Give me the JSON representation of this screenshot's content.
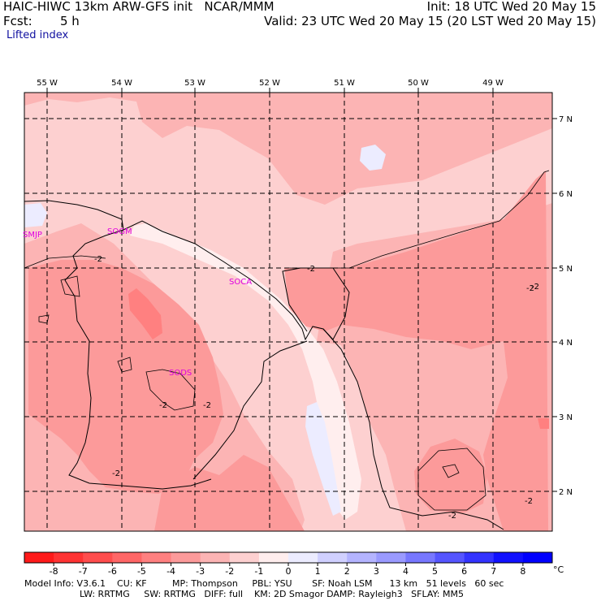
{
  "header": {
    "title_left": "HAIC-HIWC 13km ARW-GFS init   NCAR/MMM",
    "fcst_label": "Fcst:",
    "fcst_value": "5 h",
    "init_text": "Init: 18 UTC Wed 20 May 15",
    "valid_text": "Valid: 23 UTC Wed 20 May 15 (20 LST Wed 20 May 15)",
    "field_name": "Lifted index"
  },
  "map": {
    "lon_labels": [
      "55 W",
      "54 W",
      "53 W",
      "52 W",
      "51 W",
      "50 W",
      "49 W"
    ],
    "lat_labels": [
      "7 N",
      "6 N",
      "5 N",
      "4 N",
      "3 N",
      "2 N"
    ],
    "stations": [
      "SMJP",
      "SOGM",
      "SOCA",
      "SODS"
    ],
    "contour_labels": [
      "-2",
      "-2",
      "-2",
      "-2",
      "-2",
      "-2",
      "-2",
      "-2",
      "-2",
      "-2"
    ]
  },
  "colorbar": {
    "ticks": [
      "-8",
      "-7",
      "-6",
      "-5",
      "-4",
      "-3",
      "-2",
      "-1",
      "0",
      "1",
      "2",
      "3",
      "4",
      "5",
      "6",
      "7",
      "8"
    ],
    "unit": "°C",
    "colors": [
      "#ff1a1a",
      "#ff3333",
      "#ff4d4d",
      "#ff6666",
      "#ff8080",
      "#fc9a9a",
      "#fcb4b4",
      "#fdd0d0",
      "#ffeeee",
      "#ececff",
      "#d0d0ff",
      "#b4b4ff",
      "#9a9aff",
      "#7777ff",
      "#5555ff",
      "#3333ff",
      "#1111ff",
      "#0000ff"
    ]
  },
  "footer": {
    "line1": "Model Info: V3.6.1    CU: KF         MP: Thompson     PBL: YSU       SF: Noah LSM      13 km   51 levels   60 sec",
    "line2": "LW: RRTMG     SW: RRTMG   DIFF: full    KM: 2D Smagor DAMP: Rayleigh3   SFLAY: MM5"
  }
}
